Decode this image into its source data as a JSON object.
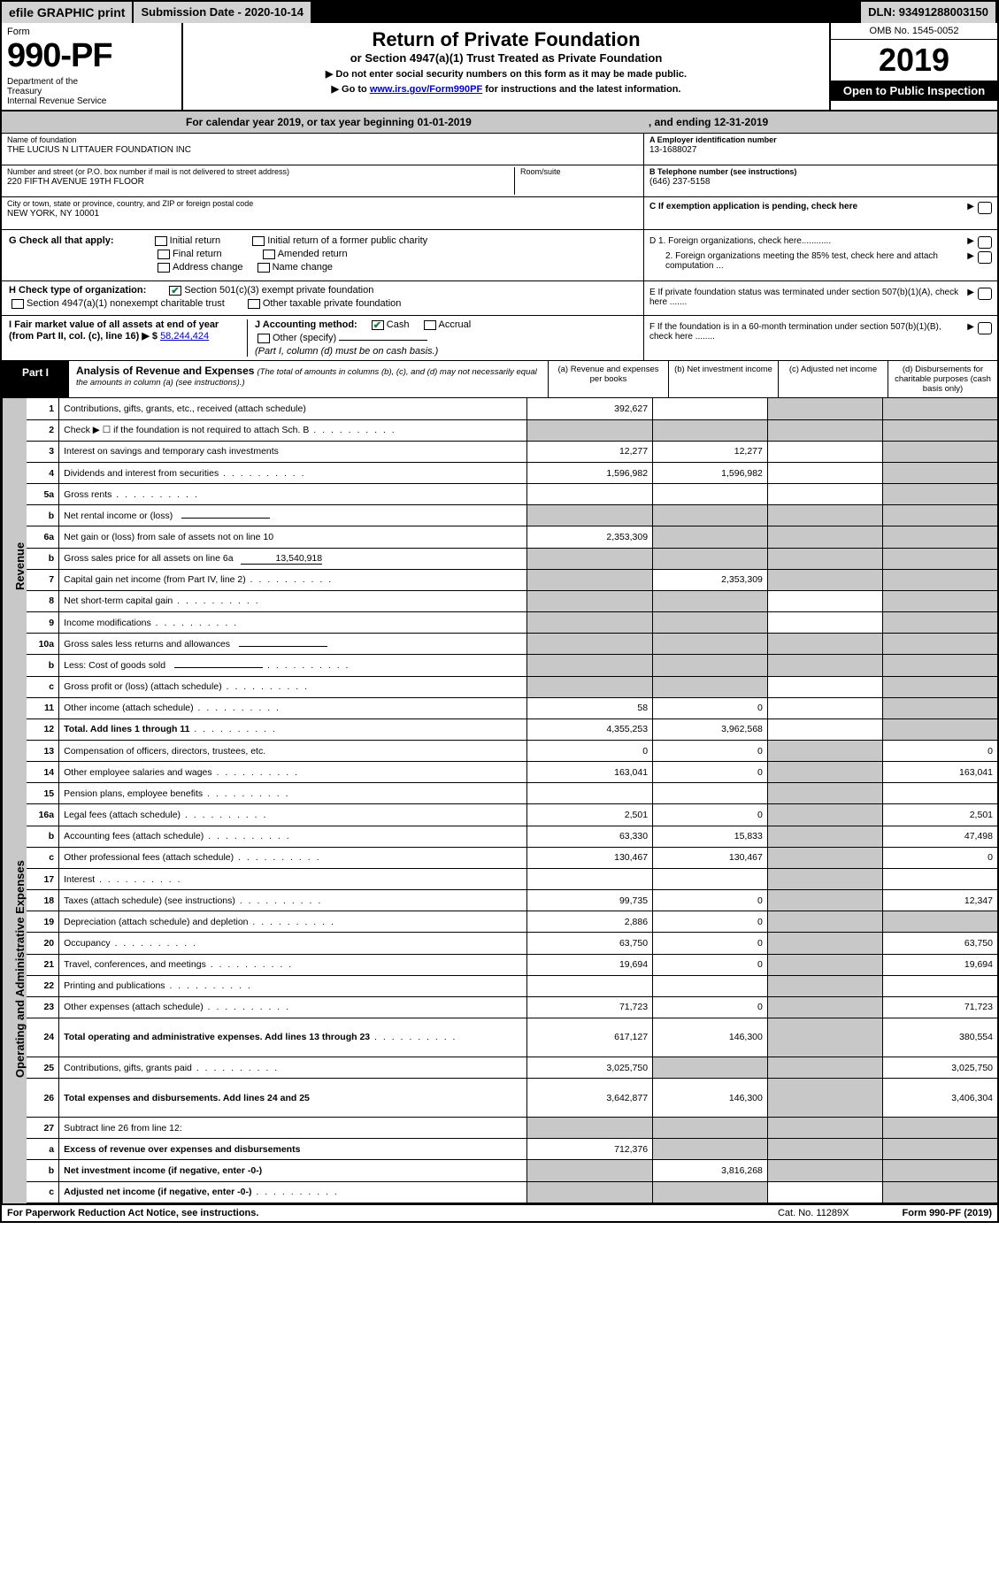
{
  "topbar": {
    "efile": "efile GRAPHIC print",
    "subdate": "Submission Date - 2020-10-14",
    "dln": "DLN: 93491288003150"
  },
  "header": {
    "form_label": "Form",
    "form_num": "990-PF",
    "dept": "Department of the Treasury\nInternal Revenue Service",
    "title": "Return of Private Foundation",
    "subtitle": "or Section 4947(a)(1) Trust Treated as Private Foundation",
    "instr1": "▶ Do not enter social security numbers on this form as it may be made public.",
    "instr2_pre": "▶ Go to ",
    "instr2_link": "www.irs.gov/Form990PF",
    "instr2_post": " for instructions and the latest information.",
    "omb": "OMB No. 1545-0052",
    "year": "2019",
    "open": "Open to Public Inspection"
  },
  "calyear": {
    "text": "For calendar year 2019, or tax year beginning 01-01-2019",
    "ending": ", and ending 12-31-2019"
  },
  "foundation": {
    "name_lbl": "Name of foundation",
    "name": "THE LUCIUS N LITTAUER FOUNDATION INC",
    "addr_lbl": "Number and street (or P.O. box number if mail is not delivered to street address)",
    "addr": "220 FIFTH AVENUE 19TH FLOOR",
    "room_lbl": "Room/suite",
    "city_lbl": "City or town, state or province, country, and ZIP or foreign postal code",
    "city": "NEW YORK, NY  10001",
    "ein_lbl": "A Employer identification number",
    "ein": "13-1688027",
    "phone_lbl": "B Telephone number (see instructions)",
    "phone": "(646) 237-5158",
    "c_lbl": "C If exemption application is pending, check here",
    "d1": "D 1. Foreign organizations, check here............",
    "d2": "2. Foreign organizations meeting the 85% test, check here and attach computation ...",
    "e": "E  If private foundation status was terminated under section 507(b)(1)(A), check here .......",
    "f": "F  If the foundation is in a 60-month termination under section 507(b)(1)(B), check here ........"
  },
  "checks": {
    "g_lbl": "G Check all that apply:",
    "initial": "Initial return",
    "initial_former": "Initial return of a former public charity",
    "final": "Final return",
    "amended": "Amended return",
    "addr_change": "Address change",
    "name_change": "Name change",
    "h_lbl": "H Check type of organization:",
    "h1": "Section 501(c)(3) exempt private foundation",
    "h2": "Section 4947(a)(1) nonexempt charitable trust",
    "h3": "Other taxable private foundation",
    "i_lbl": "I Fair market value of all assets at end of year (from Part II, col. (c), line 16) ▶ $",
    "i_val": "58,244,424",
    "j_lbl": "J Accounting method:",
    "j_cash": "Cash",
    "j_accrual": "Accrual",
    "j_other": "Other (specify)",
    "j_note": "(Part I, column (d) must be on cash basis.)"
  },
  "part1": {
    "label": "Part I",
    "title": "Analysis of Revenue and Expenses",
    "note": "(The total of amounts in columns (b), (c), and (d) may not necessarily equal the amounts in column (a) (see instructions).)",
    "col_a": "(a)    Revenue and expenses per books",
    "col_b": "(b)  Net investment income",
    "col_c": "(c)  Adjusted net income",
    "col_d": "(d)  Disbursements for charitable purposes (cash basis only)"
  },
  "side": {
    "revenue": "Revenue",
    "expenses": "Operating and Administrative Expenses"
  },
  "rows": [
    {
      "n": "1",
      "d": "Contributions, gifts, grants, etc., received (attach schedule)",
      "a": "392,627",
      "b": "",
      "c": "g",
      "d1": "g"
    },
    {
      "n": "2",
      "d": "Check ▶ ☐ if the foundation is not required to attach Sch. B",
      "a": "g",
      "b": "g",
      "c": "g",
      "d1": "g",
      "dots": 1
    },
    {
      "n": "3",
      "d": "Interest on savings and temporary cash investments",
      "a": "12,277",
      "b": "12,277",
      "c": "",
      "d1": "g"
    },
    {
      "n": "4",
      "d": "Dividends and interest from securities",
      "a": "1,596,982",
      "b": "1,596,982",
      "c": "",
      "d1": "g",
      "dots": 1
    },
    {
      "n": "5a",
      "d": "Gross rents",
      "a": "",
      "b": "",
      "c": "",
      "d1": "g",
      "dots": 1
    },
    {
      "n": "b",
      "d": "Net rental income or (loss)",
      "a": "g",
      "b": "g",
      "c": "g",
      "d1": "g",
      "blank": 1
    },
    {
      "n": "6a",
      "d": "Net gain or (loss) from sale of assets not on line 10",
      "a": "2,353,309",
      "b": "g",
      "c": "g",
      "d1": "g"
    },
    {
      "n": "b",
      "d": "Gross sales price for all assets on line 6a",
      "a": "g",
      "b": "g",
      "c": "g",
      "d1": "g",
      "inline": "13,540,918"
    },
    {
      "n": "7",
      "d": "Capital gain net income (from Part IV, line 2)",
      "a": "g",
      "b": "2,353,309",
      "c": "g",
      "d1": "g",
      "dots": 1
    },
    {
      "n": "8",
      "d": "Net short-term capital gain",
      "a": "g",
      "b": "g",
      "c": "",
      "d1": "g",
      "dots": 1
    },
    {
      "n": "9",
      "d": "Income modifications",
      "a": "g",
      "b": "g",
      "c": "",
      "d1": "g",
      "dots": 1
    },
    {
      "n": "10a",
      "d": "Gross sales less returns and allowances",
      "a": "g",
      "b": "g",
      "c": "g",
      "d1": "g",
      "blank": 1
    },
    {
      "n": "b",
      "d": "Less: Cost of goods sold",
      "a": "g",
      "b": "g",
      "c": "g",
      "d1": "g",
      "dots": 1,
      "blank": 1
    },
    {
      "n": "c",
      "d": "Gross profit or (loss) (attach schedule)",
      "a": "g",
      "b": "g",
      "c": "",
      "d1": "g",
      "dots": 1
    },
    {
      "n": "11",
      "d": "Other income (attach schedule)",
      "a": "58",
      "b": "0",
      "c": "",
      "d1": "g",
      "dots": 1
    },
    {
      "n": "12",
      "d": "Total. Add lines 1 through 11",
      "a": "4,355,253",
      "b": "3,962,568",
      "c": "",
      "d1": "g",
      "bold": 1,
      "dots": 1
    },
    {
      "n": "13",
      "d": "Compensation of officers, directors, trustees, etc.",
      "a": "0",
      "b": "0",
      "c": "g",
      "d1": "0"
    },
    {
      "n": "14",
      "d": "Other employee salaries and wages",
      "a": "163,041",
      "b": "0",
      "c": "g",
      "d1": "163,041",
      "dots": 1
    },
    {
      "n": "15",
      "d": "Pension plans, employee benefits",
      "a": "",
      "b": "",
      "c": "g",
      "d1": "",
      "dots": 1
    },
    {
      "n": "16a",
      "d": "Legal fees (attach schedule)",
      "a": "2,501",
      "b": "0",
      "c": "g",
      "d1": "2,501",
      "dots": 1
    },
    {
      "n": "b",
      "d": "Accounting fees (attach schedule)",
      "a": "63,330",
      "b": "15,833",
      "c": "g",
      "d1": "47,498",
      "dots": 1
    },
    {
      "n": "c",
      "d": "Other professional fees (attach schedule)",
      "a": "130,467",
      "b": "130,467",
      "c": "g",
      "d1": "0",
      "dots": 1
    },
    {
      "n": "17",
      "d": "Interest",
      "a": "",
      "b": "",
      "c": "g",
      "d1": "",
      "dots": 1
    },
    {
      "n": "18",
      "d": "Taxes (attach schedule) (see instructions)",
      "a": "99,735",
      "b": "0",
      "c": "g",
      "d1": "12,347",
      "dots": 1
    },
    {
      "n": "19",
      "d": "Depreciation (attach schedule) and depletion",
      "a": "2,886",
      "b": "0",
      "c": "g",
      "d1": "g",
      "dots": 1
    },
    {
      "n": "20",
      "d": "Occupancy",
      "a": "63,750",
      "b": "0",
      "c": "g",
      "d1": "63,750",
      "dots": 1
    },
    {
      "n": "21",
      "d": "Travel, conferences, and meetings",
      "a": "19,694",
      "b": "0",
      "c": "g",
      "d1": "19,694",
      "dots": 1
    },
    {
      "n": "22",
      "d": "Printing and publications",
      "a": "",
      "b": "",
      "c": "g",
      "d1": "",
      "dots": 1
    },
    {
      "n": "23",
      "d": "Other expenses (attach schedule)",
      "a": "71,723",
      "b": "0",
      "c": "g",
      "d1": "71,723",
      "dots": 1
    },
    {
      "n": "24",
      "d": "Total operating and administrative expenses. Add lines 13 through 23",
      "a": "617,127",
      "b": "146,300",
      "c": "g",
      "d1": "380,554",
      "bold": 1,
      "dots": 1,
      "tall": 1
    },
    {
      "n": "25",
      "d": "Contributions, gifts, grants paid",
      "a": "3,025,750",
      "b": "g",
      "c": "g",
      "d1": "3,025,750",
      "dots": 1
    },
    {
      "n": "26",
      "d": "Total expenses and disbursements. Add lines 24 and 25",
      "a": "3,642,877",
      "b": "146,300",
      "c": "g",
      "d1": "3,406,304",
      "bold": 1,
      "tall": 1
    },
    {
      "n": "27",
      "d": "Subtract line 26 from line 12:",
      "a": "g",
      "b": "g",
      "c": "g",
      "d1": "g"
    },
    {
      "n": "a",
      "d": "Excess of revenue over expenses and disbursements",
      "a": "712,376",
      "b": "g",
      "c": "g",
      "d1": "g",
      "bold": 1
    },
    {
      "n": "b",
      "d": "Net investment income (if negative, enter -0-)",
      "a": "g",
      "b": "3,816,268",
      "c": "g",
      "d1": "g",
      "bold": 1
    },
    {
      "n": "c",
      "d": "Adjusted net income (if negative, enter -0-)",
      "a": "g",
      "b": "g",
      "c": "",
      "d1": "g",
      "bold": 1,
      "dots": 1
    }
  ],
  "footer": {
    "left": "For Paperwork Reduction Act Notice, see instructions.",
    "mid": "Cat. No. 11289X",
    "right": "Form 990-PF (2019)"
  }
}
